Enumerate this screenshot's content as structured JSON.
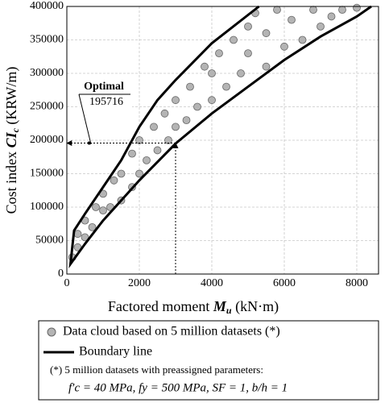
{
  "chart_data": {
    "type": "scatter",
    "y_label": {
      "text": "Cost index ",
      "symbol": "CI",
      "sub": "c",
      "unit": " (KRW/m)"
    },
    "x_label": {
      "text": "Factored moment ",
      "symbol": "M",
      "sub": "u",
      "unit": " (kN·m)"
    },
    "xlim": [
      0,
      8600
    ],
    "ylim": [
      0,
      400000
    ],
    "xticks": [
      0,
      2000,
      4000,
      6000,
      8000
    ],
    "yticks": [
      0,
      50000,
      100000,
      150000,
      200000,
      250000,
      300000,
      350000,
      400000
    ],
    "grid": true,
    "series": [
      {
        "name": "Data cloud based on 5 million datasets (*)",
        "color": "#b4b4b4",
        "x": [
          150,
          300,
          300,
          500,
          500,
          700,
          800,
          1000,
          1000,
          1200,
          1300,
          1500,
          1500,
          1800,
          1800,
          2000,
          2000,
          2200,
          2400,
          2500,
          2700,
          2800,
          3000,
          3000,
          3300,
          3400,
          3600,
          3800,
          4000,
          4000,
          4200,
          4400,
          4600,
          4800,
          5000,
          5000,
          5200,
          5500,
          5500,
          5800,
          6000,
          6200,
          6500,
          6800,
          7000,
          7300,
          7600,
          8000
        ],
        "values": [
          25000,
          40000,
          60000,
          55000,
          80000,
          70000,
          100000,
          95000,
          120000,
          100000,
          140000,
          110000,
          150000,
          130000,
          180000,
          150000,
          200000,
          170000,
          220000,
          185000,
          240000,
          200000,
          220000,
          260000,
          230000,
          280000,
          250000,
          310000,
          260000,
          300000,
          330000,
          280000,
          350000,
          300000,
          370000,
          330000,
          390000,
          310000,
          360000,
          395000,
          340000,
          380000,
          350000,
          395000,
          370000,
          385000,
          395000,
          398000
        ]
      },
      {
        "name": "Boundary line",
        "color": "#000000",
        "kind": "line",
        "x": [
          5300,
          4000,
          3000,
          2500,
          2000,
          1500,
          1000,
          500,
          200,
          150,
          100,
          500,
          1000,
          2000,
          3000,
          4000,
          5000,
          6000,
          7000,
          8000,
          8400
        ],
        "values": [
          400000,
          345000,
          290000,
          260000,
          220000,
          170000,
          130000,
          90000,
          65000,
          40000,
          15000,
          45000,
          80000,
          140000,
          195000,
          240000,
          280000,
          320000,
          355000,
          385000,
          400000
        ]
      }
    ],
    "annotation": {
      "label": "Optimal",
      "x": 3000,
      "y": 195716
    },
    "footnote": "(*) 5 million datasets with preassigned parameters:",
    "formula": "f′c = 40 MPa, fy = 500 MPa, SF = 1, b/h = 1"
  }
}
